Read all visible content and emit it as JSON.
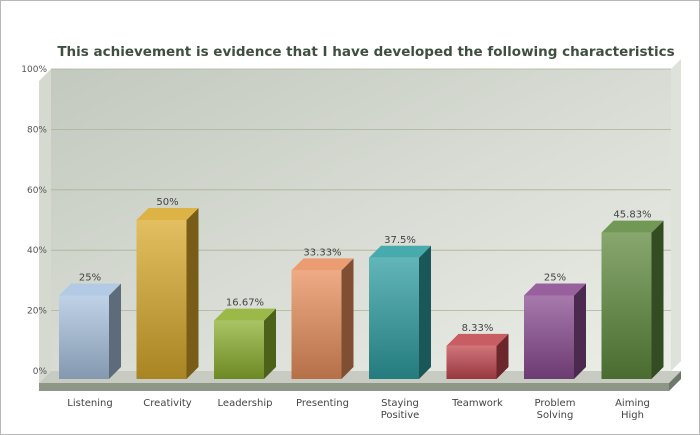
{
  "chart_data": {
    "type": "bar",
    "title": "This achievement is evidence that I have developed the following characteristics",
    "categories": [
      "Listening",
      "Creativity",
      "Leadership",
      "Presenting",
      "Staying Positive",
      "Teamwork",
      "Problem Solving",
      "Aiming High"
    ],
    "values": [
      25,
      50,
      16.67,
      33.33,
      37.5,
      8.33,
      25,
      45.83
    ],
    "value_labels": [
      "25%",
      "50%",
      "16.67%",
      "33.33%",
      "37.5%",
      "8.33%",
      "25%",
      "45.83%"
    ],
    "ylim": [
      0,
      100
    ],
    "yticks": [
      "0%",
      "20%",
      "40%",
      "60%",
      "80%",
      "100%"
    ],
    "grid": true,
    "colors": [
      "#a9c3e0",
      "#d9a92c",
      "#8cb030",
      "#e88f5c",
      "#2e9ea2",
      "#c2474f",
      "#8a4c91",
      "#5f8a3e"
    ]
  }
}
